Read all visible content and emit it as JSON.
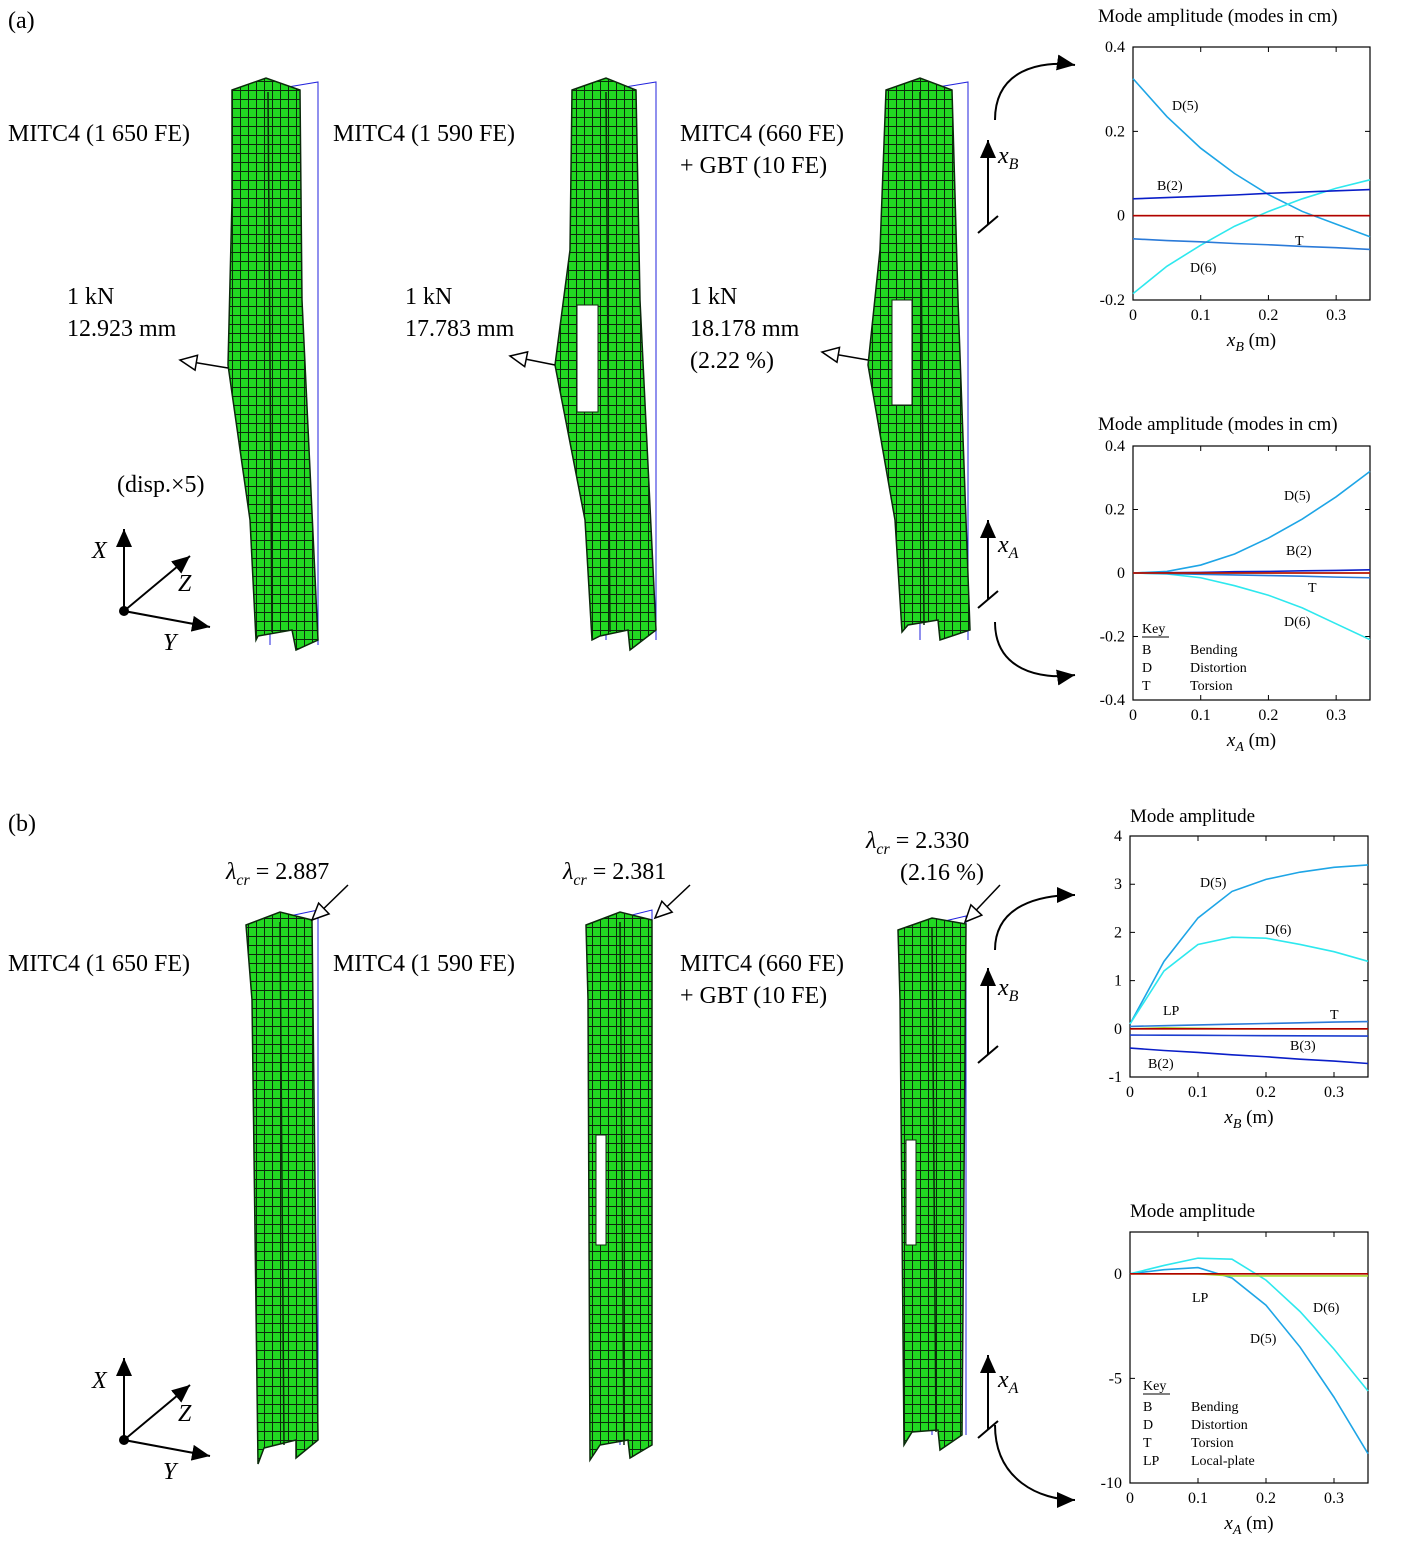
{
  "panels": [
    {
      "label": "(a)",
      "columns": [
        {
          "title": [
            "MITC4 (1 650 FE)"
          ],
          "annotation": [
            "1 kN",
            "12.923 mm"
          ]
        },
        {
          "title": [
            "MITC4 (1 590 FE)"
          ],
          "annotation": [
            "1 kN",
            "17.783 mm"
          ]
        },
        {
          "title": [
            "MITC4 (660 FE)",
            "+ GBT (10 FE)"
          ],
          "annotation": [
            "1 kN",
            "18.178 mm",
            "(2.22 %)"
          ]
        }
      ],
      "note": "(disp.×5)"
    },
    {
      "label": "(b)",
      "columns": [
        {
          "title": [
            "MITC4 (1 650 FE)"
          ],
          "lambda": {
            "symbol": "λ",
            "sub": "cr",
            "text": " = 2.887"
          }
        },
        {
          "title": [
            "MITC4 (1 590 FE)"
          ],
          "lambda": {
            "symbol": "λ",
            "sub": "cr",
            "text": " = 2.381"
          }
        },
        {
          "title": [
            "MITC4 (660 FE)",
            "+ GBT (10 FE)"
          ],
          "lambda": {
            "symbol": "λ",
            "sub": "cr",
            "text": " = 2.330"
          },
          "annotation": [
            "(2.16 %)"
          ]
        }
      ]
    }
  ],
  "axes": {
    "X": "X",
    "Y": "Y",
    "Z": "Z"
  },
  "coordinates": {
    "xB": {
      "symbol": "x",
      "sub": "B"
    },
    "xA": {
      "symbol": "x",
      "sub": "A"
    }
  },
  "chart_data": [
    {
      "type": "line",
      "title": "Mode amplitude (modes in cm)",
      "xlabel": {
        "symbol": "x",
        "sub": "B",
        "unit": " (m)"
      },
      "x": [
        0,
        0.05,
        0.1,
        0.15,
        0.2,
        0.25,
        0.3,
        0.35
      ],
      "xlim": [
        0,
        0.35
      ],
      "xticks": [
        0,
        0.1,
        0.2,
        0.3
      ],
      "ylim": [
        -0.2,
        0.4
      ],
      "yticks": [
        -0.2,
        0,
        0.2,
        0.4
      ],
      "series": [
        {
          "name": "D(5)",
          "color": "#1ea5e6",
          "values": [
            0.325,
            0.235,
            0.16,
            0.1,
            0.05,
            0.01,
            -0.02,
            -0.05
          ]
        },
        {
          "name": "D(6)",
          "color": "#2ee8ee",
          "values": [
            -0.185,
            -0.12,
            -0.07,
            -0.025,
            0.01,
            0.04,
            0.065,
            0.085
          ]
        },
        {
          "name": "B(2)",
          "color": "#0a1ec8",
          "values": [
            0.04,
            0.043,
            0.046,
            0.049,
            0.053,
            0.056,
            0.059,
            0.062
          ]
        },
        {
          "name": "T",
          "color": "#2a7ad8",
          "values": [
            -0.055,
            -0.059,
            -0.062,
            -0.066,
            -0.069,
            -0.073,
            -0.076,
            -0.08
          ]
        },
        {
          "color": "#f0a000",
          "values": [
            0,
            0,
            0,
            0,
            0,
            0,
            0,
            0
          ]
        },
        {
          "color": "#b00000",
          "values": [
            0,
            0,
            0,
            0,
            0,
            0,
            0,
            0
          ]
        }
      ]
    },
    {
      "type": "line",
      "title": "Mode amplitude (modes in cm)",
      "xlabel": {
        "symbol": "x",
        "sub": "A",
        "unit": " (m)"
      },
      "x": [
        0,
        0.05,
        0.1,
        0.15,
        0.2,
        0.25,
        0.3,
        0.35
      ],
      "xlim": [
        0,
        0.35
      ],
      "xticks": [
        0,
        0.1,
        0.2,
        0.3
      ],
      "ylim": [
        -0.4,
        0.4
      ],
      "yticks": [
        -0.4,
        -0.2,
        0,
        0.2,
        0.4
      ],
      "series": [
        {
          "name": "D(5)",
          "color": "#1ea5e6",
          "values": [
            0,
            0.005,
            0.025,
            0.06,
            0.11,
            0.17,
            0.24,
            0.32
          ]
        },
        {
          "name": "D(6)",
          "color": "#2ee8ee",
          "values": [
            0,
            -0.003,
            -0.015,
            -0.04,
            -0.07,
            -0.11,
            -0.16,
            -0.21
          ]
        },
        {
          "name": "B(2)",
          "color": "#0a1ec8",
          "values": [
            0,
            0.001,
            0.002,
            0.004,
            0.005,
            0.007,
            0.008,
            0.01
          ]
        },
        {
          "name": "T",
          "color": "#2a7ad8",
          "values": [
            0,
            -0.002,
            -0.004,
            -0.006,
            -0.008,
            -0.01,
            -0.013,
            -0.015
          ]
        },
        {
          "color": "#f0a000",
          "values": [
            0,
            0,
            0,
            0,
            0,
            0,
            0,
            0
          ]
        },
        {
          "color": "#b00000",
          "values": [
            0,
            0,
            0,
            0,
            0,
            0,
            0,
            0
          ]
        }
      ],
      "key": [
        {
          "abbr": "B",
          "label": "Bending"
        },
        {
          "abbr": "D",
          "label": "Distortion"
        },
        {
          "abbr": "T",
          "label": "Torsion"
        }
      ],
      "key_title": "Key"
    },
    {
      "type": "line",
      "title": "Mode amplitude",
      "xlabel": {
        "symbol": "x",
        "sub": "B",
        "unit": " (m)"
      },
      "x": [
        0,
        0.05,
        0.1,
        0.15,
        0.2,
        0.25,
        0.3,
        0.35
      ],
      "xlim": [
        0,
        0.35
      ],
      "xticks": [
        0,
        0.1,
        0.2,
        0.3
      ],
      "ylim": [
        -1,
        4
      ],
      "yticks": [
        -1,
        0,
        1,
        2,
        3,
        4
      ],
      "series": [
        {
          "name": "D(5)",
          "color": "#1ea5e6",
          "values": [
            0.1,
            1.4,
            2.3,
            2.85,
            3.1,
            3.25,
            3.35,
            3.4
          ]
        },
        {
          "name": "D(6)",
          "color": "#2ee8ee",
          "values": [
            0.1,
            1.2,
            1.75,
            1.9,
            1.88,
            1.75,
            1.6,
            1.4
          ]
        },
        {
          "name": "T",
          "color": "#2a7ad8",
          "values": [
            0.05,
            0.065,
            0.08,
            0.095,
            0.11,
            0.125,
            0.14,
            0.15
          ]
        },
        {
          "name": "B(3)",
          "color": "#1b3dcf",
          "values": [
            -0.13,
            -0.133,
            -0.136,
            -0.139,
            -0.142,
            -0.145,
            -0.148,
            -0.15
          ]
        },
        {
          "name": "B(2)",
          "color": "#0a1ec8",
          "values": [
            -0.4,
            -0.45,
            -0.49,
            -0.54,
            -0.58,
            -0.63,
            -0.67,
            -0.72
          ]
        },
        {
          "name": "LP",
          "color": "#a8d830",
          "values": [
            0,
            0.02,
            0.01,
            0,
            0,
            0,
            0,
            0
          ]
        },
        {
          "color": "#f0a000",
          "values": [
            0,
            0,
            0,
            0,
            0,
            0,
            0,
            0
          ]
        },
        {
          "color": "#b00000",
          "values": [
            0,
            0,
            0,
            0,
            0,
            0,
            0,
            0
          ]
        }
      ]
    },
    {
      "type": "line",
      "title": "Mode amplitude",
      "xlabel": {
        "symbol": "x",
        "sub": "A",
        "unit": " (m)"
      },
      "x": [
        0,
        0.05,
        0.1,
        0.15,
        0.2,
        0.25,
        0.3,
        0.35
      ],
      "xlim": [
        0,
        0.35
      ],
      "xticks": [
        0,
        0.1,
        0.2,
        0.3
      ],
      "ylim": [
        -10,
        2
      ],
      "yticks": [
        -10,
        -5,
        0
      ],
      "series": [
        {
          "name": "D(5)",
          "color": "#1ea5e6",
          "values": [
            0,
            0.2,
            0.3,
            -0.2,
            -1.5,
            -3.5,
            -5.9,
            -8.6
          ]
        },
        {
          "name": "D(6)",
          "color": "#2ee8ee",
          "values": [
            0,
            0.4,
            0.75,
            0.7,
            -0.3,
            -1.8,
            -3.6,
            -5.6
          ]
        },
        {
          "name": "LP",
          "color": "#a8d830",
          "values": [
            0,
            0,
            0,
            -0.1,
            -0.1,
            -0.1,
            -0.1,
            -0.1
          ]
        },
        {
          "color": "#f0a000",
          "values": [
            0,
            0,
            0,
            0,
            0,
            0,
            0,
            0
          ]
        },
        {
          "color": "#b00000",
          "values": [
            0,
            0,
            0,
            0,
            0,
            0,
            0,
            0
          ]
        }
      ],
      "key": [
        {
          "abbr": "B",
          "label": "Bending"
        },
        {
          "abbr": "D",
          "label": "Distortion"
        },
        {
          "abbr": "T",
          "label": "Torsion"
        },
        {
          "abbr": "LP",
          "label": "Local-plate"
        }
      ],
      "key_title": "Key"
    }
  ]
}
